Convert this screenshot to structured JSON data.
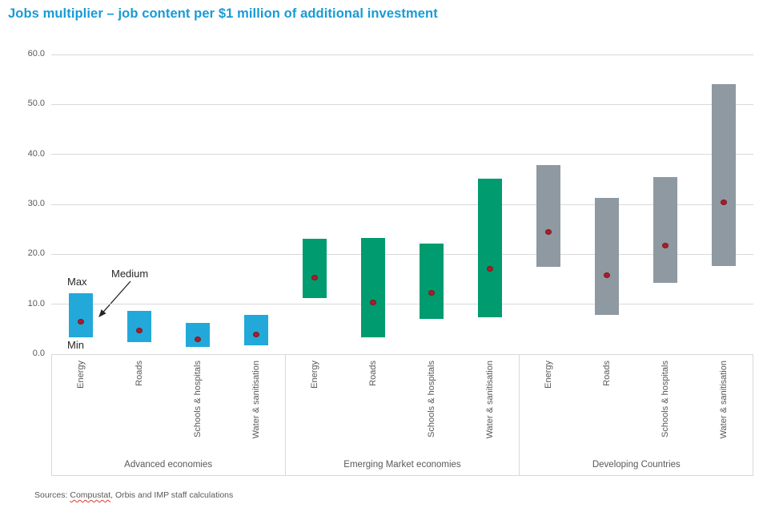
{
  "title": "Jobs multiplier – job content per $1 million of additional investment",
  "annotations": {
    "max": "Max",
    "min": "Min",
    "medium": "Medium"
  },
  "source": {
    "prefix": "Sources: ",
    "word": "Compustat",
    "rest": ", Orbis and IMP staff calculations"
  },
  "chart_data": {
    "type": "bar",
    "subtype": "floating-range-bars-with-median-point",
    "title": "Jobs multiplier – job content per $1 million of additional investment",
    "ylim": [
      0,
      60
    ],
    "yticks": [
      0,
      10,
      20,
      30,
      40,
      50,
      60
    ],
    "ytick_labels": [
      "0.0",
      "10.0",
      "20.0",
      "30.0",
      "40.0",
      "50.0",
      "60.0"
    ],
    "grid": true,
    "legend_annotations": {
      "top_of_bar": "Max",
      "bottom_of_bar": "Min",
      "dot": "Medium"
    },
    "categories": [
      "Energy",
      "Roads",
      "Schools & hospitals",
      "Water & sanitisation"
    ],
    "groups": [
      {
        "label": "Advanced economies",
        "color": "#22A9DA",
        "bars": [
          {
            "category": "Energy",
            "min": 3.4,
            "max": 12.2,
            "median": 6.5
          },
          {
            "category": "Roads",
            "min": 2.4,
            "max": 8.7,
            "median": 4.8
          },
          {
            "category": "Schools & hospitals",
            "min": 1.4,
            "max": 6.3,
            "median": 3.0
          },
          {
            "category": "Water & sanitisation",
            "min": 1.8,
            "max": 7.8,
            "median": 3.9
          }
        ]
      },
      {
        "label": "Emerging Market economies",
        "color": "#009B6F",
        "bars": [
          {
            "category": "Energy",
            "min": 11.2,
            "max": 23.1,
            "median": 15.4
          },
          {
            "category": "Roads",
            "min": 3.3,
            "max": 23.3,
            "median": 10.3
          },
          {
            "category": "Schools & hospitals",
            "min": 7.0,
            "max": 22.2,
            "median": 12.2
          },
          {
            "category": "Water & sanitisation",
            "min": 7.4,
            "max": 35.1,
            "median": 17.1
          }
        ]
      },
      {
        "label": "Developing Countries",
        "color": "#8E99A1",
        "bars": [
          {
            "category": "Energy",
            "min": 17.5,
            "max": 37.9,
            "median": 24.5
          },
          {
            "category": "Roads",
            "min": 7.8,
            "max": 31.3,
            "median": 15.8
          },
          {
            "category": "Schools & hospitals",
            "min": 14.2,
            "max": 35.5,
            "median": 21.8
          },
          {
            "category": "Water & sanitisation",
            "min": 17.7,
            "max": 54.0,
            "median": 30.4
          }
        ]
      }
    ],
    "colors": {
      "title": "#189BD7",
      "median_dot": "#A81E2C",
      "gridline": "#D9D9D9",
      "axis_text": "#595959",
      "annotation_text": "#262626",
      "advanced_economies_bar": "#22A9DA",
      "emerging_market_bar": "#009B6F",
      "developing_countries_bar": "#8E99A1"
    }
  }
}
